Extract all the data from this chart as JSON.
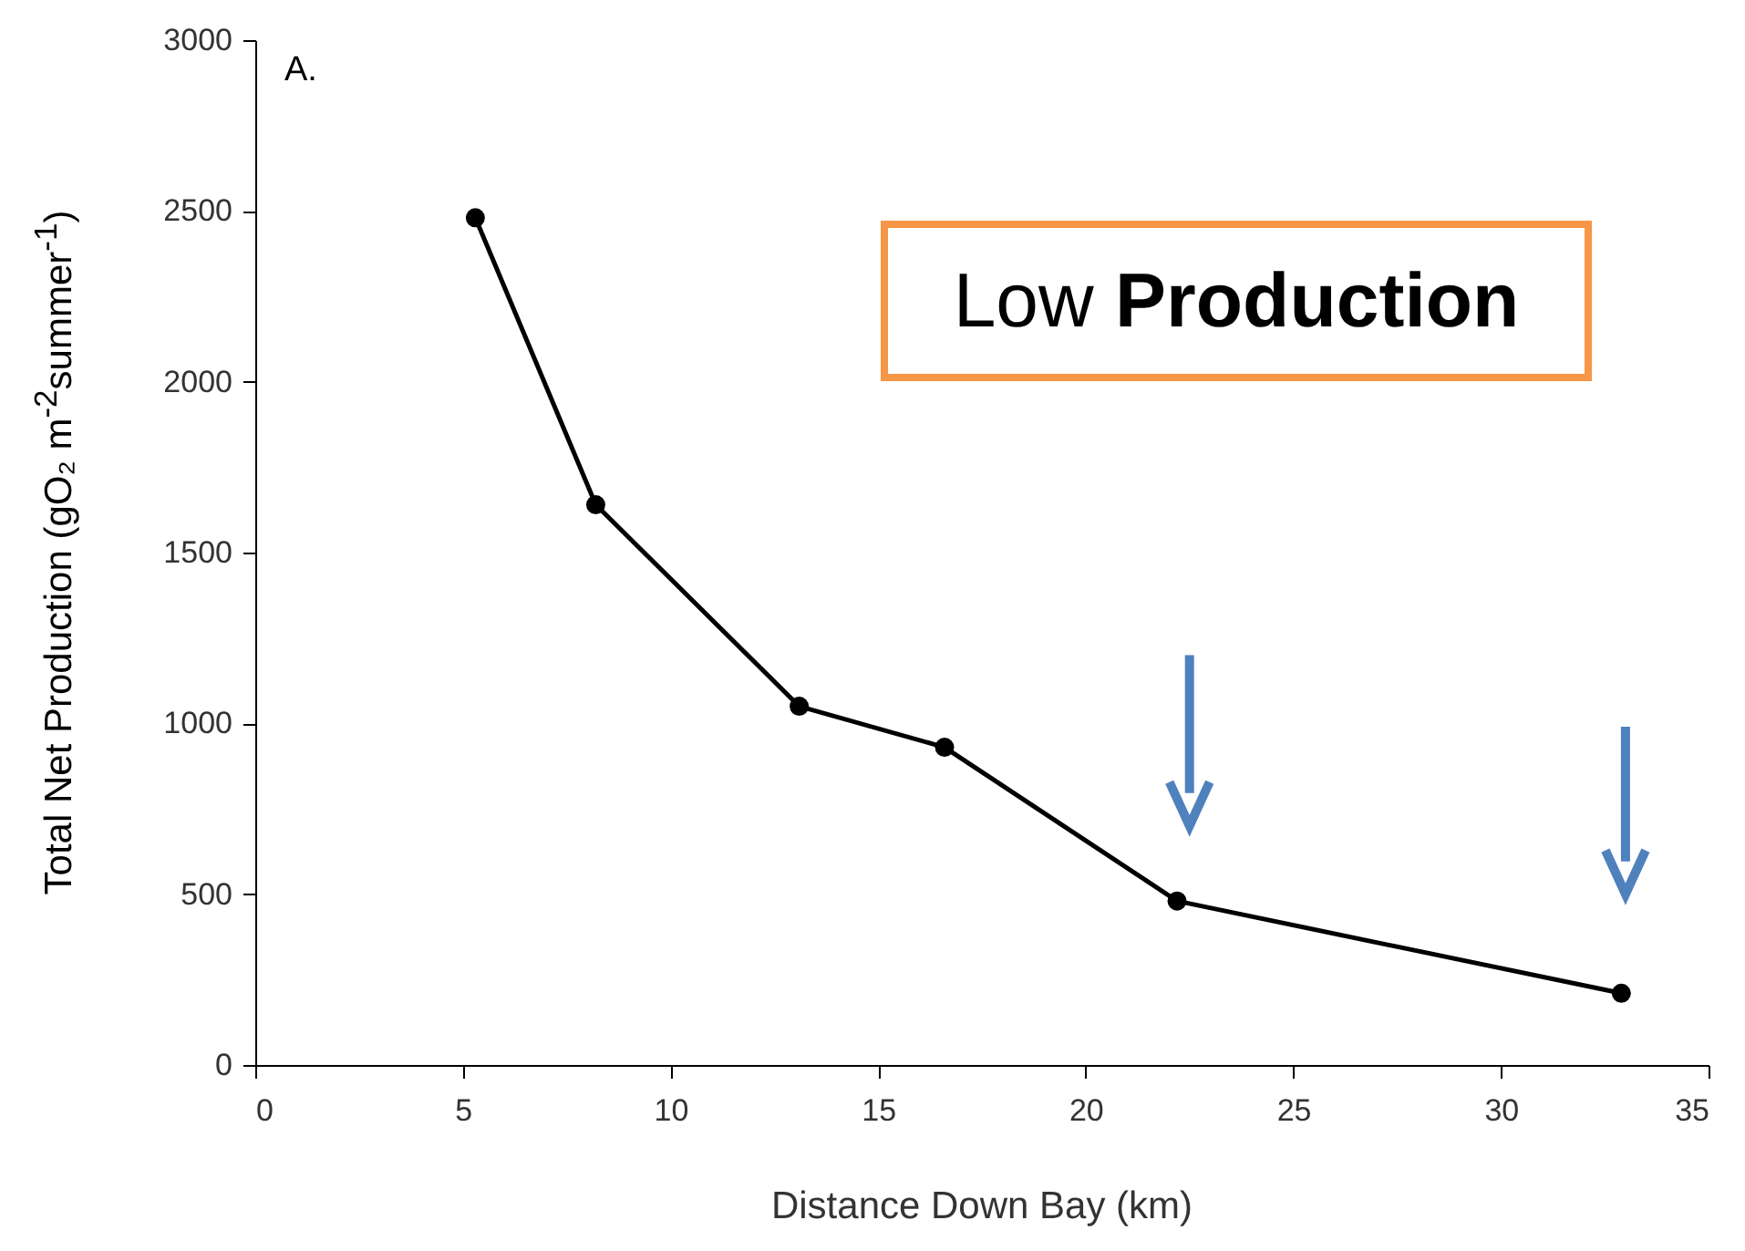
{
  "chart_data": {
    "type": "line",
    "xlabel": "Distance Down Bay (km)",
    "ylabel": "Total Net Production (gO₂ m$^{-2}$summer$^{-1}$)",
    "x": [
      5.3,
      8.2,
      13.1,
      16.6,
      22.2,
      32.9
    ],
    "series": [
      {
        "color": "#000000",
        "values": [
          2480,
          1640,
          1050,
          930,
          480,
          210
        ]
      }
    ],
    "xlim": [
      0,
      35
    ],
    "xticks": [
      0,
      5,
      10,
      15,
      20,
      25,
      30,
      35
    ],
    "ylim": [
      0,
      3000
    ],
    "yticks": [
      0,
      500,
      1000,
      1500,
      2000,
      2500,
      3000
    ],
    "marker": "circle",
    "line_style": "solid",
    "grid": false,
    "legend": false,
    "annotations": [
      "A.",
      "Low Production"
    ]
  }
}
